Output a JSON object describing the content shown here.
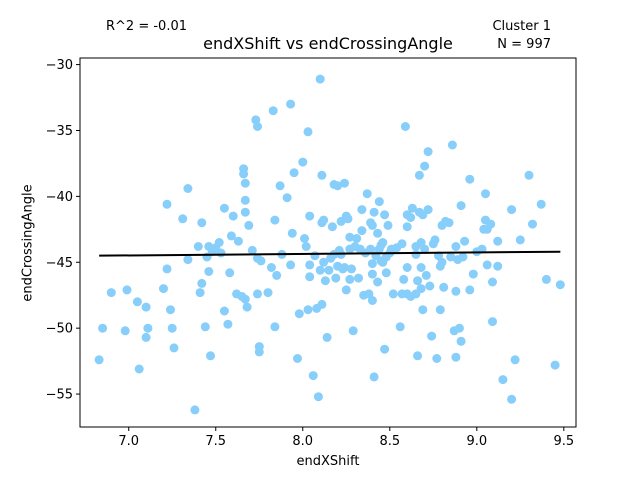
{
  "chart_data": {
    "type": "scatter",
    "title": "endXShift vs endCrossingAngle",
    "xlabel": "endXShift",
    "ylabel": "endCrossingAngle",
    "xlim": [
      6.72,
      9.57
    ],
    "ylim": [
      -57.5,
      -29.5
    ],
    "xticks": [
      7.0,
      7.5,
      8.0,
      8.5,
      9.0,
      9.5
    ],
    "yticks": [
      -55,
      -50,
      -45,
      -40,
      -35,
      -30
    ],
    "annotations": {
      "r2": "R^2 = -0.01",
      "cluster": "Cluster 1",
      "n": "N = 997"
    },
    "point_color": "#87cefa",
    "line_color": "#000000",
    "regression": {
      "x": [
        6.83,
        9.48
      ],
      "y": [
        -44.5,
        -44.2
      ]
    },
    "points": [
      [
        6.83,
        -52.4
      ],
      [
        6.85,
        -50.0
      ],
      [
        6.9,
        -47.3
      ],
      [
        6.98,
        -50.2
      ],
      [
        6.99,
        -47.1
      ],
      [
        7.05,
        -48.0
      ],
      [
        7.06,
        -53.1
      ],
      [
        7.1,
        -50.7
      ],
      [
        7.11,
        -50.0
      ],
      [
        7.1,
        -48.4
      ],
      [
        7.2,
        -47.0
      ],
      [
        7.22,
        -45.5
      ],
      [
        7.22,
        -40.6
      ],
      [
        7.24,
        -48.6
      ],
      [
        7.25,
        -50.0
      ],
      [
        7.26,
        -51.5
      ],
      [
        7.31,
        -41.7
      ],
      [
        7.34,
        -39.4
      ],
      [
        7.34,
        -44.8
      ],
      [
        7.38,
        -56.2
      ],
      [
        7.4,
        -43.8
      ],
      [
        7.41,
        -47.3
      ],
      [
        7.42,
        -46.6
      ],
      [
        7.42,
        -42.0
      ],
      [
        7.44,
        -49.9
      ],
      [
        7.45,
        -44.6
      ],
      [
        7.46,
        -45.7
      ],
      [
        7.46,
        -43.8
      ],
      [
        7.47,
        -52.1
      ],
      [
        7.48,
        -44.2
      ],
      [
        7.5,
        -43.9
      ],
      [
        7.52,
        -43.5
      ],
      [
        7.53,
        -44.3
      ],
      [
        7.55,
        -48.7
      ],
      [
        7.55,
        -40.9
      ],
      [
        7.57,
        -49.7
      ],
      [
        7.58,
        -45.8
      ],
      [
        7.59,
        -43.0
      ],
      [
        7.6,
        -41.5
      ],
      [
        7.62,
        -47.4
      ],
      [
        7.63,
        -43.4
      ],
      [
        7.65,
        -47.6
      ],
      [
        7.66,
        -37.9
      ],
      [
        7.66,
        -38.3
      ],
      [
        7.67,
        -39.0
      ],
      [
        7.67,
        -40.3
      ],
      [
        7.67,
        -41.2
      ],
      [
        7.67,
        -47.8
      ],
      [
        7.68,
        -48.4
      ],
      [
        7.69,
        -42.2
      ],
      [
        7.71,
        -44.1
      ],
      [
        7.73,
        -34.2
      ],
      [
        7.74,
        -34.7
      ],
      [
        7.74,
        -44.7
      ],
      [
        7.74,
        -47.4
      ],
      [
        7.75,
        -51.4
      ],
      [
        7.75,
        -51.8
      ],
      [
        7.76,
        -44.9
      ],
      [
        7.8,
        -47.3
      ],
      [
        7.82,
        -45.4
      ],
      [
        7.83,
        -33.5
      ],
      [
        7.84,
        -49.9
      ],
      [
        7.84,
        -41.8
      ],
      [
        7.85,
        -46.0
      ],
      [
        7.87,
        -39.2
      ],
      [
        7.88,
        -44.4
      ],
      [
        7.91,
        -40.1
      ],
      [
        7.93,
        -33.0
      ],
      [
        7.93,
        -45.2
      ],
      [
        7.94,
        -42.8
      ],
      [
        7.95,
        -38.2
      ],
      [
        7.97,
        -52.3
      ],
      [
        7.98,
        -48.9
      ],
      [
        8.0,
        -37.4
      ],
      [
        8.01,
        -43.2
      ],
      [
        8.02,
        -43.8
      ],
      [
        8.03,
        -35.1
      ],
      [
        8.03,
        -48.6
      ],
      [
        8.04,
        -45.2
      ],
      [
        8.04,
        -46.1
      ],
      [
        8.04,
        -41.5
      ],
      [
        8.06,
        -53.6
      ],
      [
        8.07,
        -44.5
      ],
      [
        8.08,
        -48.5
      ],
      [
        8.09,
        -55.2
      ],
      [
        8.1,
        -31.1
      ],
      [
        8.1,
        -45.6
      ],
      [
        8.11,
        -48.2
      ],
      [
        8.11,
        -38.4
      ],
      [
        8.11,
        -42.0
      ],
      [
        8.12,
        -41.8
      ],
      [
        8.12,
        -45.0
      ],
      [
        8.13,
        -46.4
      ],
      [
        8.14,
        -50.7
      ],
      [
        8.15,
        -45.6
      ],
      [
        8.16,
        -44.7
      ],
      [
        8.17,
        -42.3
      ],
      [
        8.18,
        -39.1
      ],
      [
        8.18,
        -44.4
      ],
      [
        8.19,
        -46.2
      ],
      [
        8.2,
        -45.3
      ],
      [
        8.2,
        -39.2
      ],
      [
        8.21,
        -44.1
      ],
      [
        8.22,
        -44.4
      ],
      [
        8.22,
        -41.9
      ],
      [
        8.23,
        -45.5
      ],
      [
        8.24,
        -39.0
      ],
      [
        8.24,
        -45.4
      ],
      [
        8.25,
        -41.5
      ],
      [
        8.25,
        -47.1
      ],
      [
        8.26,
        -41.7
      ],
      [
        8.27,
        -46.3
      ],
      [
        8.27,
        -44.0
      ],
      [
        8.27,
        -43.1
      ],
      [
        8.28,
        -45.5
      ],
      [
        8.29,
        -50.2
      ],
      [
        8.3,
        -43.8
      ],
      [
        8.31,
        -43.2
      ],
      [
        8.32,
        -46.2
      ],
      [
        8.33,
        -44.0
      ],
      [
        8.34,
        -41.0
      ],
      [
        8.34,
        -42.6
      ],
      [
        8.35,
        -47.5
      ],
      [
        8.36,
        -44.3
      ],
      [
        8.37,
        -39.8
      ],
      [
        8.38,
        -47.4
      ],
      [
        8.39,
        -42.0
      ],
      [
        8.39,
        -44.0
      ],
      [
        8.4,
        -42.2
      ],
      [
        8.4,
        -45.1
      ],
      [
        8.4,
        -45.9
      ],
      [
        8.4,
        -47.9
      ],
      [
        8.41,
        -53.7
      ],
      [
        8.41,
        -41.2
      ],
      [
        8.42,
        -44.5
      ],
      [
        8.43,
        -42.8
      ],
      [
        8.43,
        -46.5
      ],
      [
        8.44,
        -40.4
      ],
      [
        8.44,
        -44.0
      ],
      [
        8.45,
        -43.7
      ],
      [
        8.45,
        -44.9
      ],
      [
        8.46,
        -45.0
      ],
      [
        8.46,
        -43.5
      ],
      [
        8.47,
        -51.6
      ],
      [
        8.47,
        -41.4
      ],
      [
        8.48,
        -45.8
      ],
      [
        8.48,
        -44.6
      ],
      [
        8.49,
        -42.2
      ],
      [
        8.5,
        -44.3
      ],
      [
        8.51,
        -44.0
      ],
      [
        8.52,
        -47.4
      ],
      [
        8.54,
        -43.9
      ],
      [
        8.56,
        -49.9
      ],
      [
        8.57,
        -47.4
      ],
      [
        8.57,
        -43.6
      ],
      [
        8.58,
        -46.3
      ],
      [
        8.59,
        -34.7
      ],
      [
        8.6,
        -41.4
      ],
      [
        8.6,
        -42.3
      ],
      [
        8.6,
        -45.4
      ],
      [
        8.6,
        -47.4
      ],
      [
        8.62,
        -41.6
      ],
      [
        8.62,
        -47.6
      ],
      [
        8.63,
        -40.9
      ],
      [
        8.65,
        -47.4
      ],
      [
        8.65,
        -43.8
      ],
      [
        8.65,
        -44.4
      ],
      [
        8.66,
        -52.1
      ],
      [
        8.66,
        -46.4
      ],
      [
        8.67,
        -38.4
      ],
      [
        8.67,
        -41.2
      ],
      [
        8.68,
        -43.5
      ],
      [
        8.68,
        -45.4
      ],
      [
        8.68,
        -47.0
      ],
      [
        8.69,
        -48.6
      ],
      [
        8.69,
        -41.4
      ],
      [
        8.7,
        -37.7
      ],
      [
        8.7,
        -44.0
      ],
      [
        8.71,
        -46.0
      ],
      [
        8.72,
        -36.6
      ],
      [
        8.72,
        -41.0
      ],
      [
        8.73,
        -46.8
      ],
      [
        8.74,
        -50.6
      ],
      [
        8.75,
        -43.6
      ],
      [
        8.76,
        -43.3
      ],
      [
        8.77,
        -52.3
      ],
      [
        8.78,
        -44.5
      ],
      [
        8.79,
        -48.6
      ],
      [
        8.79,
        -45.3
      ],
      [
        8.8,
        -42.2
      ],
      [
        8.8,
        -45.0
      ],
      [
        8.81,
        -46.9
      ],
      [
        8.82,
        -41.9
      ],
      [
        8.84,
        -42.0
      ],
      [
        8.85,
        -44.6
      ],
      [
        8.86,
        -36.1
      ],
      [
        8.87,
        -50.2
      ],
      [
        8.88,
        -52.2
      ],
      [
        8.88,
        -47.2
      ],
      [
        8.88,
        -43.8
      ],
      [
        8.89,
        -44.8
      ],
      [
        8.9,
        -50.0
      ],
      [
        8.91,
        -51.0
      ],
      [
        8.91,
        -40.7
      ],
      [
        8.92,
        -44.6
      ],
      [
        8.93,
        -43.4
      ],
      [
        8.96,
        -47.1
      ],
      [
        8.96,
        -38.7
      ],
      [
        8.98,
        -45.9
      ],
      [
        9.0,
        -44.2
      ],
      [
        9.03,
        -44.0
      ],
      [
        9.04,
        -42.5
      ],
      [
        9.05,
        -39.8
      ],
      [
        9.05,
        -41.8
      ],
      [
        9.06,
        -45.2
      ],
      [
        9.06,
        -42.5
      ],
      [
        9.08,
        -42.1
      ],
      [
        9.09,
        -46.5
      ],
      [
        9.09,
        -49.5
      ],
      [
        9.12,
        -43.4
      ],
      [
        9.12,
        -45.3
      ],
      [
        9.15,
        -53.9
      ],
      [
        9.2,
        -41.0
      ],
      [
        9.2,
        -55.4
      ],
      [
        9.22,
        -52.4
      ],
      [
        9.25,
        -43.3
      ],
      [
        9.3,
        -38.4
      ],
      [
        9.32,
        -42.1
      ],
      [
        9.37,
        -40.6
      ],
      [
        9.4,
        -46.3
      ],
      [
        9.45,
        -52.8
      ],
      [
        9.48,
        -46.7
      ]
    ]
  }
}
